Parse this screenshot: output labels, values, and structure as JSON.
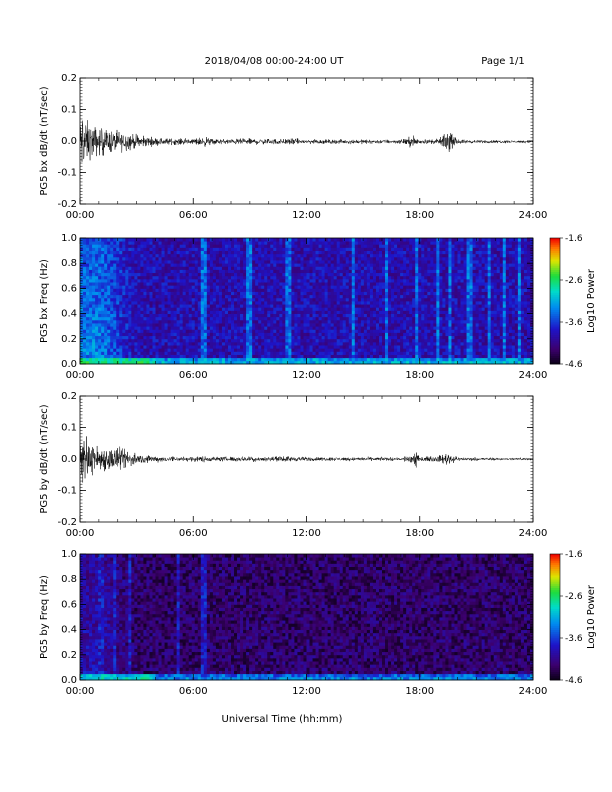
{
  "header": {
    "title": "2018/04/08  00:00-24:00 UT",
    "page": "Page 1/1"
  },
  "xlabel": "Universal Time (hh:mm)",
  "chart_data": [
    {
      "type": "line",
      "id": "bx-timeseries",
      "ylabel": "PG5 bx dB/dt (nT/sec)",
      "xlim": [
        0,
        24
      ],
      "ylim": [
        -0.2,
        0.2
      ],
      "xticks": [
        "00:00",
        "06:00",
        "12:00",
        "18:00",
        "24:00"
      ],
      "yticks": [
        "-0.2",
        "-0.1",
        "0.0",
        "0.1",
        "0.2"
      ],
      "x_hours": [
        0,
        0.1,
        0.25,
        0.5,
        0.75,
        1,
        1.5,
        2,
        2.5,
        3,
        3.5,
        4,
        5,
        6,
        6.6,
        7,
        8,
        9,
        10,
        11,
        12,
        13,
        14,
        15,
        16,
        17,
        17.8,
        18,
        19,
        19.5,
        20,
        21,
        22,
        23,
        24
      ],
      "envelope": [
        0.06,
        0.13,
        0.09,
        0.07,
        0.06,
        0.055,
        0.045,
        0.04,
        0.035,
        0.025,
        0.02,
        0.015,
        0.012,
        0.01,
        0.02,
        0.01,
        0.01,
        0.012,
        0.01,
        0.012,
        0.01,
        0.008,
        0.008,
        0.008,
        0.008,
        0.007,
        0.025,
        0.007,
        0.01,
        0.04,
        0.008,
        0.006,
        0.006,
        0.005,
        0.005
      ],
      "mean": -0.002
    },
    {
      "type": "heatmap",
      "id": "bx-spectrogram",
      "ylabel": "PG5 bx Freq (Hz)",
      "xlim": [
        0,
        24
      ],
      "ylim": [
        0,
        1.0
      ],
      "xticks": [
        "00:00",
        "06:00",
        "12:00",
        "18:00",
        "24:00"
      ],
      "yticks": [
        "0.0",
        "0.2",
        "0.4",
        "0.6",
        "0.8",
        "1.0"
      ],
      "colorbar": {
        "label": "Log10 Power",
        "ticks": [
          "-1.6",
          "-2.6",
          "-3.6",
          "-4.6"
        ],
        "range": [
          -4.6,
          -1.6
        ]
      },
      "background_power": -3.9,
      "hot_region_power": -3.3,
      "hot_region_hours": [
        0,
        3
      ],
      "low_freq_band_power": -3.0,
      "stripe_hours": [
        6.6,
        9.0,
        11.0,
        14.5,
        16.2,
        17.8,
        19.0,
        19.6,
        20.6,
        21.7,
        22.5,
        23.3
      ],
      "stripe_power": -3.4
    },
    {
      "type": "line",
      "id": "by-timeseries",
      "ylabel": "PG5 by dB/dt (nT/sec)",
      "xlim": [
        0,
        24
      ],
      "ylim": [
        -0.2,
        0.2
      ],
      "xticks": [
        "00:00",
        "06:00",
        "12:00",
        "18:00",
        "24:00"
      ],
      "yticks": [
        "-0.2",
        "-0.1",
        "0.0",
        "0.1",
        "0.2"
      ],
      "x_hours": [
        0,
        0.1,
        0.25,
        0.5,
        0.75,
        1,
        1.5,
        2,
        2.5,
        3,
        3.5,
        4,
        5,
        6,
        6.6,
        7,
        8,
        9,
        10,
        11,
        12,
        13,
        14,
        15,
        16,
        17,
        17.8,
        18,
        19,
        19.5,
        20,
        21,
        22,
        23,
        24
      ],
      "envelope": [
        0.05,
        0.09,
        0.08,
        0.06,
        0.055,
        0.05,
        0.045,
        0.045,
        0.035,
        0.02,
        0.015,
        0.012,
        0.01,
        0.009,
        0.012,
        0.009,
        0.009,
        0.01,
        0.008,
        0.01,
        0.008,
        0.007,
        0.007,
        0.007,
        0.007,
        0.006,
        0.03,
        0.006,
        0.012,
        0.025,
        0.007,
        0.006,
        0.005,
        0.005,
        0.005
      ],
      "mean": 0.0
    },
    {
      "type": "heatmap",
      "id": "by-spectrogram",
      "ylabel": "PG5 by Freq (Hz)",
      "xlim": [
        0,
        24
      ],
      "ylim": [
        0,
        1.0
      ],
      "xticks": [
        "00:00",
        "06:00",
        "12:00",
        "18:00",
        "24:00"
      ],
      "yticks": [
        "0.0",
        "0.2",
        "0.4",
        "0.6",
        "0.8",
        "1.0"
      ],
      "colorbar": {
        "label": "Log10 Power",
        "ticks": [
          "-1.6",
          "-2.6",
          "-3.6",
          "-4.6"
        ],
        "range": [
          -4.6,
          -1.6
        ]
      },
      "background_power": -4.25,
      "hot_region_power": -3.9,
      "hot_region_hours": [
        0,
        3
      ],
      "low_freq_band_power": -3.2,
      "stripe_hours": [
        1.1,
        1.8,
        2.6,
        5.2,
        6.6
      ],
      "stripe_power": -3.8
    }
  ]
}
